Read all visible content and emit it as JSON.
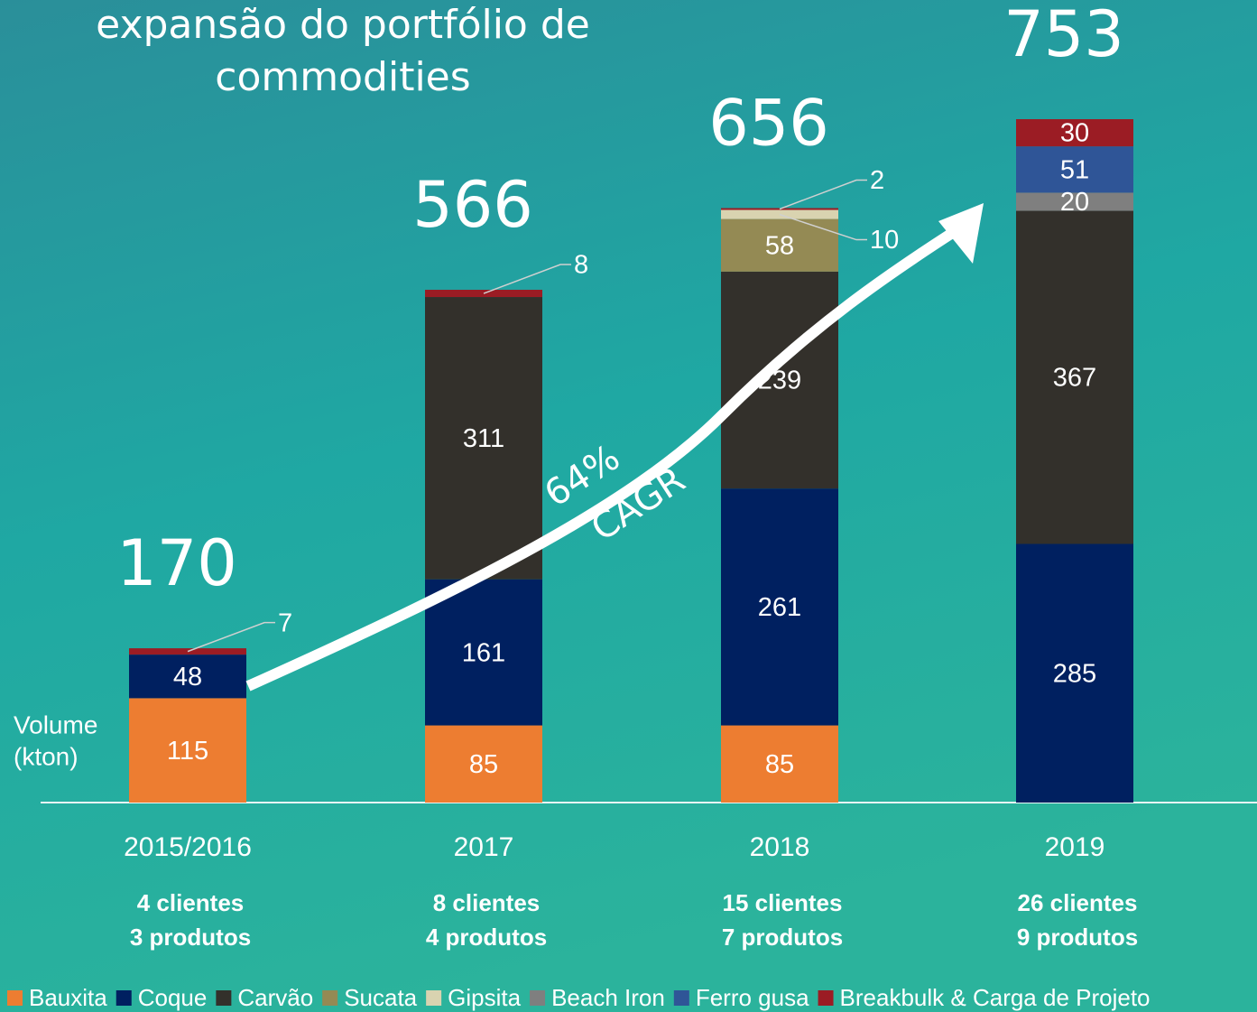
{
  "chart_data": {
    "type": "stacked_bar",
    "title": [
      "expansão do portfólio de",
      "commodities"
    ],
    "y_label": [
      "Volume",
      "(kton)"
    ],
    "annotation": [
      "64%",
      "CAGR"
    ],
    "categories": [
      "2015/2016",
      "2017",
      "2018",
      "2019"
    ],
    "totals": [
      170,
      566,
      656,
      753
    ],
    "notes": [
      [
        "4 clientes",
        "3 produtos"
      ],
      [
        "8 clientes",
        "4 produtos"
      ],
      [
        "15 clientes",
        "7 produtos"
      ],
      [
        "26 clientes",
        "9 produtos"
      ]
    ],
    "series": [
      {
        "name": "Bauxita",
        "color": "#ed7d31",
        "values": [
          115,
          85,
          85,
          null
        ]
      },
      {
        "name": "Coque",
        "color": "#002060",
        "values": [
          48,
          161,
          261,
          285
        ]
      },
      {
        "name": "Carvão",
        "color": "#33302b",
        "values": [
          null,
          311,
          239,
          367
        ]
      },
      {
        "name": "Sucata",
        "color": "#948a54",
        "values": [
          null,
          null,
          58,
          null
        ]
      },
      {
        "name": "Gipsita",
        "color": "#d9d3b0",
        "values": [
          null,
          null,
          10,
          null
        ]
      },
      {
        "name": "Beach Iron",
        "color": "#7f7f7f",
        "values": [
          null,
          null,
          null,
          20
        ]
      },
      {
        "name": "Ferro gusa",
        "color": "#2f5597",
        "values": [
          null,
          null,
          null,
          51
        ]
      },
      {
        "name": "Breakbulk & Carga de Projeto",
        "color": "#9b1c24",
        "values": [
          7,
          8,
          2,
          30
        ]
      }
    ]
  }
}
